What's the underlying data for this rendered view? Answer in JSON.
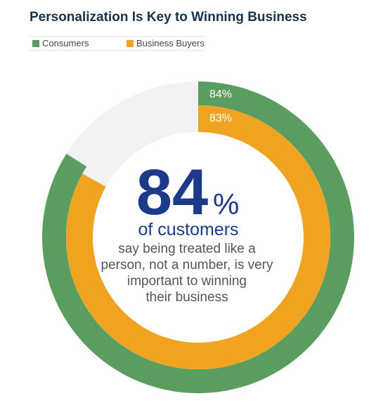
{
  "chart_data": {
    "type": "donut",
    "title": "Personalization Is Key to Winning Business",
    "track_color": "#f3f2f2",
    "series": [
      {
        "name": "Consumers",
        "color": "#5b9c5f",
        "values": [
          84
        ],
        "value_labels": [
          "84%"
        ]
      },
      {
        "name": "Business Buyers",
        "color": "#f0a320",
        "values": [
          83
        ],
        "value_labels": [
          "83%"
        ]
      }
    ],
    "annotation": {
      "value": "84",
      "unit": "%",
      "headline": "of customers",
      "lines": [
        "say being treated like a",
        "person, not a number, is very",
        "important to winning",
        "their business"
      ]
    }
  }
}
